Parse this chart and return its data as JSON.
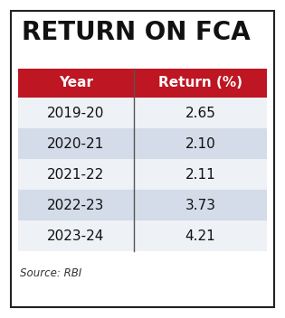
{
  "title": "RETURN ON FCA",
  "col_headers": [
    "Year",
    "Return (%)"
  ],
  "rows": [
    [
      "2019-20",
      "2.65"
    ],
    [
      "2020-21",
      "2.10"
    ],
    [
      "2021-22",
      "2.11"
    ],
    [
      "2022-23",
      "3.73"
    ],
    [
      "2023-24",
      "4.21"
    ]
  ],
  "source": "Source: RBI",
  "header_bg": "#BE1622",
  "header_text": "#FFFFFF",
  "alt_row_bg": "#D3DCE8",
  "normal_row_bg": "#EEF1F5",
  "outer_border_color": "#222222",
  "title_color": "#111111",
  "body_bg": "#FFFFFF",
  "divider_color": "#555555",
  "source_color": "#333333"
}
